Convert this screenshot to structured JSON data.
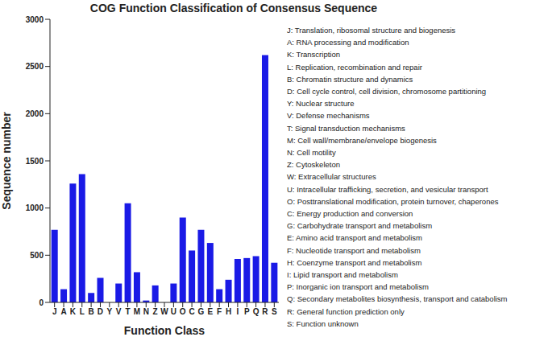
{
  "chart_data": {
    "type": "bar",
    "title": "COG Function Classification of Consensus Sequence",
    "x_label": "Function Class",
    "y_label": "Sequence number",
    "categories": [
      "J",
      "A",
      "K",
      "L",
      "B",
      "D",
      "Y",
      "V",
      "T",
      "M",
      "N",
      "Z",
      "W",
      "U",
      "O",
      "C",
      "G",
      "E",
      "F",
      "H",
      "I",
      "P",
      "Q",
      "R",
      "S"
    ],
    "values": [
      770,
      140,
      1260,
      1360,
      100,
      260,
      0,
      200,
      1050,
      320,
      20,
      180,
      0,
      200,
      900,
      550,
      770,
      630,
      140,
      240,
      460,
      470,
      490,
      2620,
      420
    ],
    "color": "#1a1ae6",
    "ylim": [
      0,
      3000
    ],
    "yticks": [
      0,
      500,
      1000,
      1500,
      2000,
      2500,
      3000
    ],
    "grid": false,
    "category_descriptions": [
      "J: Translation, ribosomal structure and biogenesis",
      "A: RNA processing and modification",
      "K: Transcription",
      "L: Replication, recombination and repair",
      "B: Chromatin structure and dynamics",
      "D: Cell cycle control, cell division, chromosome partitioning",
      "Y: Nuclear structure",
      "V: Defense mechanisms",
      "T: Signal transduction mechanisms",
      "M: Cell wall/membrane/envelope biogenesis",
      "N: Cell motility",
      "Z: Cytoskeleton",
      "W: Extracellular structures",
      "U: Intracellular trafficking, secretion, and vesicular transport",
      "O: Posttranslational modification, protein turnover, chaperones",
      "C: Energy production and conversion",
      "G: Carbohydrate transport and metabolism",
      "E: Amino acid transport and metabolism",
      "F: Nucleotide transport and metabolism",
      "H: Coenzyme transport and metabolism",
      "I: Lipid transport and metabolism",
      "P: Inorganic ion transport and metabolism",
      "Q: Secondary metabolites biosynthesis, transport and catabolism",
      "R: General function prediction only",
      "S: Function unknown"
    ]
  }
}
